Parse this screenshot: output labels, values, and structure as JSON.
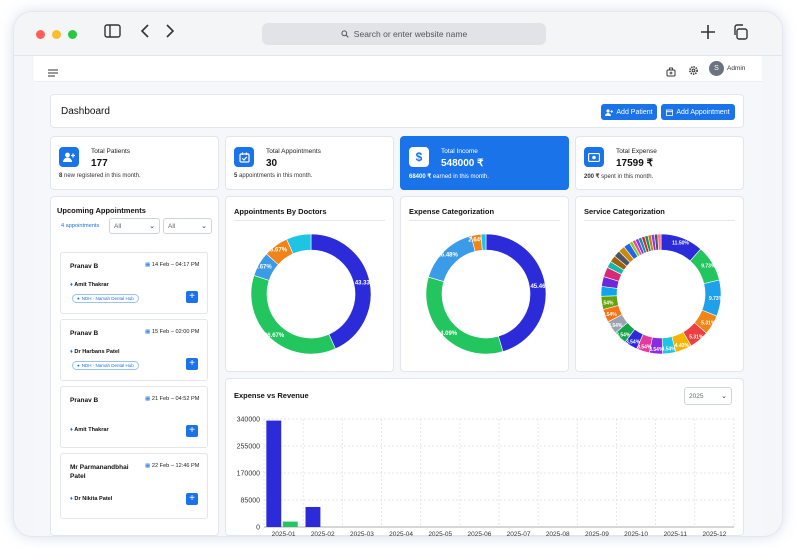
{
  "browser": {
    "address_placeholder": "Search or enter website name"
  },
  "topbar": {
    "user_initial": "S",
    "user_name": "Admin"
  },
  "header": {
    "title": "Dashboard",
    "add_patient_label": "Add Patient",
    "add_appointment_label": "Add Appointment"
  },
  "stats": [
    {
      "label": "Total Patients",
      "value": "177",
      "note_bold": "8",
      "note_text": " new registered in this month.",
      "icon": "add-user-icon"
    },
    {
      "label": "Total Appointments",
      "value": "30",
      "note_bold": "5",
      "note_text": " appointments in this month.",
      "icon": "calendar-check-icon"
    },
    {
      "label": "Total Income",
      "value": "548000 ₹",
      "note_bold": "68400 ₹",
      "note_text": " earned in this month.",
      "icon": "dollar-icon"
    },
    {
      "label": "Total Expense",
      "value": "17599 ₹",
      "note_bold": "200 ₹",
      "note_text": " spent in this month.",
      "icon": "cash-icon"
    }
  ],
  "upcoming": {
    "title": "Upcoming Appointments",
    "badge": "4 appointments",
    "filter1": "All",
    "filter2": "All",
    "items": [
      {
        "patient": "Pranav B",
        "date": "14 Feb – 04:17 PM",
        "doctor": "Amit Thakrar",
        "clinic": "NDH - Namah Dental Hub"
      },
      {
        "patient": "Pranav B",
        "date": "15 Feb – 02:00 PM",
        "doctor": "Dr Harbans Patel",
        "clinic": "NDH - Namah Dental Hub"
      },
      {
        "patient": "Pranav B",
        "date": "21 Feb – 04:52 PM",
        "doctor": "Amit Thakrar",
        "clinic": ""
      },
      {
        "patient": "Mr Parmanandbhai Patel",
        "date": "22 Feb – 12:46 PM",
        "doctor": "Dr Nikita Patel",
        "clinic": ""
      }
    ]
  },
  "chart_titles": {
    "doctors": "Appointments By Doctors",
    "expense": "Expense Categorization",
    "service": "Service Categorization",
    "revenue": "Expense vs Revenue"
  },
  "revenue_year": "2025",
  "chart_data": [
    {
      "type": "pie",
      "title": "Appointments By Doctors",
      "donut": true,
      "slices": [
        {
          "value": 43.33,
          "color": "#2b2bd9"
        },
        {
          "value": 36.67,
          "color": "#22c55e"
        },
        {
          "value": 6.67,
          "color": "#3b9be8"
        },
        {
          "value": 6.67,
          "color": "#f08418"
        },
        {
          "value": 6.66,
          "color": "#1fc3e3"
        }
      ],
      "labels": [
        "43.33%",
        "36.67%",
        "6.67%",
        "6.67%",
        ""
      ]
    },
    {
      "type": "pie",
      "title": "Expense Categorization",
      "donut": true,
      "slices": [
        {
          "value": 45.46,
          "color": "#2b2bd9"
        },
        {
          "value": 34.09,
          "color": "#22c55e"
        },
        {
          "value": 16.48,
          "color": "#3b9be8"
        },
        {
          "value": 2.64,
          "color": "#f08418"
        },
        {
          "value": 1.33,
          "color": "#1fc3e3"
        }
      ],
      "labels": [
        "45.46%",
        "34.09%",
        "16.48%",
        "2.64%",
        ""
      ]
    },
    {
      "type": "pie",
      "title": "Service Categorization",
      "donut": true,
      "slices": [
        {
          "value": 11.5,
          "color": "#2b2bd9"
        },
        {
          "value": 9.73,
          "color": "#22c55e"
        },
        {
          "value": 9.73,
          "color": "#1fa0ea"
        },
        {
          "value": 5.31,
          "color": "#f08418"
        },
        {
          "value": 5.31,
          "color": "#ef3e3e"
        },
        {
          "value": 4.42,
          "color": "#f5b400"
        },
        {
          "value": 3.54,
          "color": "#1fc3e3"
        },
        {
          "value": 3.54,
          "color": "#8b2be2"
        },
        {
          "value": 3.54,
          "color": "#e5399b"
        },
        {
          "value": 3.54,
          "color": "#2b2bd9"
        },
        {
          "value": 3.54,
          "color": "#16a34a"
        },
        {
          "value": 3.54,
          "color": "#9ca3af"
        },
        {
          "value": 3.54,
          "color": "#f97316"
        },
        {
          "value": 3.54,
          "color": "#65a30d"
        },
        {
          "value": 2.65,
          "color": "#0ea5e9"
        },
        {
          "value": 2.65,
          "color": "#6d28d9"
        },
        {
          "value": 2.65,
          "color": "#db2777"
        },
        {
          "value": 1.77,
          "color": "#14b8a6"
        },
        {
          "value": 1.77,
          "color": "#a16207"
        },
        {
          "value": 1.77,
          "color": "#4b5563"
        },
        {
          "value": 1.77,
          "color": "#ca8a04"
        },
        {
          "value": 1.77,
          "color": "#2563eb"
        },
        {
          "value": 0.88,
          "color": "#84cc16"
        },
        {
          "value": 0.88,
          "color": "#ec4899"
        },
        {
          "value": 0.88,
          "color": "#7c3aed"
        },
        {
          "value": 0.88,
          "color": "#0891b2"
        },
        {
          "value": 0.88,
          "color": "#dc2626"
        },
        {
          "value": 0.88,
          "color": "#059669"
        },
        {
          "value": 0.88,
          "color": "#d97706"
        },
        {
          "value": 0.88,
          "color": "#9333ea"
        },
        {
          "value": 0.88,
          "color": "#475569"
        },
        {
          "value": 0.88,
          "color": "#fb7185"
        }
      ],
      "labels": [
        "11.50%",
        "9.73%",
        "9.73%",
        "5.31%",
        "5.31%",
        "4.42%",
        "3.54%",
        "3.54%",
        "3.54%",
        "3.54%",
        "3.54%",
        "3.54%",
        "3.54%",
        "3.54%"
      ]
    },
    {
      "type": "bar",
      "title": "Expense vs Revenue",
      "categories": [
        "2025-01",
        "2025-02",
        "2025-03",
        "2025-04",
        "2025-05",
        "2025-06",
        "2025-07",
        "2025-08",
        "2025-09",
        "2025-10",
        "2025-11",
        "2025-12"
      ],
      "series": [
        {
          "values": [
            335000,
            63000,
            0,
            0,
            0,
            0,
            0,
            0,
            0,
            0,
            0,
            0
          ],
          "color": "#2b2bd9"
        },
        {
          "values": [
            17000,
            0,
            0,
            0,
            0,
            0,
            0,
            0,
            0,
            0,
            0,
            0
          ],
          "color": "#22c55e"
        }
      ],
      "yticks": [
        "340000",
        "255000",
        "170000",
        "85000",
        "0"
      ],
      "ylim": [
        0,
        340000
      ],
      "grid": true
    }
  ]
}
